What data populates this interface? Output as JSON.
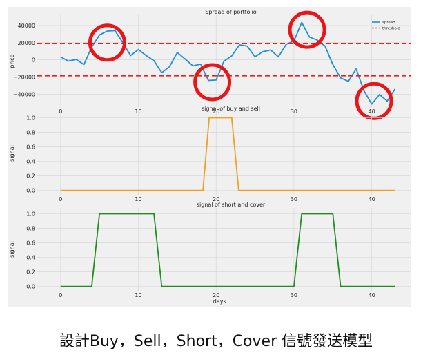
{
  "chart_data": [
    {
      "type": "line",
      "title": "Spread of portfolio",
      "xlabel": "",
      "ylabel": "price",
      "xlim": [
        -3,
        45
      ],
      "ylim": [
        -55000,
        52000
      ],
      "xticks": [
        0,
        10,
        20,
        30,
        40
      ],
      "yticks": [
        40000,
        20000,
        0,
        -20000,
        -40000
      ],
      "ytick_labels": [
        "40000",
        "20000",
        "0",
        "−20000",
        "−40000"
      ],
      "legend": {
        "placement": "top-right",
        "entries": [
          "spread",
          "threshold"
        ]
      },
      "grid": true,
      "series": [
        {
          "name": "spread",
          "color": "#1f8fd6",
          "x": [
            0,
            1,
            2,
            3,
            4,
            5,
            6,
            7,
            8,
            9,
            10,
            11,
            12,
            13,
            14,
            15,
            16,
            17,
            18,
            19,
            20,
            21,
            22,
            23,
            24,
            25,
            26,
            27,
            28,
            29,
            30,
            31,
            32,
            33,
            34,
            35,
            36,
            37,
            38,
            39,
            40,
            41,
            42,
            43
          ],
          "y": [
            3500,
            -1500,
            500,
            -5500,
            15000,
            29000,
            33500,
            34000,
            20000,
            5000,
            12000,
            5000,
            -1000,
            -15000,
            -8000,
            8500,
            1000,
            -7000,
            -5000,
            -24000,
            -23500,
            -1500,
            4500,
            17500,
            16000,
            3500,
            9500,
            11500,
            3500,
            18000,
            22000,
            43500,
            26500,
            23000,
            16000,
            -5500,
            -21000,
            -25000,
            -10500,
            -36000,
            -51500,
            -40500,
            -48000,
            -34000
          ]
        },
        {
          "name": "threshold",
          "color": "#e8221c",
          "style": "dashed",
          "y_upper": 19000,
          "y_lower": -18500
        }
      ],
      "annotations": [
        {
          "shape": "circle",
          "color": "#e8161a",
          "x": 6,
          "y": 20000
        },
        {
          "shape": "circle",
          "color": "#e8161a",
          "x": 19.5,
          "y": -26000
        },
        {
          "shape": "circle",
          "color": "#e8161a",
          "x": 31.7,
          "y": 35000
        },
        {
          "shape": "circle",
          "color": "#e8161a",
          "x": 40.3,
          "y": -48000
        }
      ]
    },
    {
      "type": "line",
      "title": "signal of buy and sell",
      "xlabel": "",
      "ylabel": "signal",
      "xlim": [
        -3,
        45
      ],
      "ylim": [
        -0.06,
        1.08
      ],
      "xticks": [
        0,
        10,
        20,
        30,
        40
      ],
      "yticks": [
        1.0,
        0.8,
        0.6,
        0.4,
        0.2,
        0.0
      ],
      "ytick_labels": [
        "1.0",
        "0.8",
        "0.6",
        "0.4",
        "0.2",
        "0.0"
      ],
      "grid": true,
      "series": [
        {
          "color": "#f0a020",
          "x": [
            0,
            18.3,
            19.1,
            22.0,
            22.9,
            43
          ],
          "y": [
            0,
            0,
            1,
            1,
            0,
            0
          ]
        }
      ]
    },
    {
      "type": "line",
      "title": "signal of short and cover",
      "xlabel": "days",
      "ylabel": "signal",
      "xlim": [
        -3,
        45
      ],
      "ylim": [
        -0.06,
        1.08
      ],
      "xticks": [
        0,
        10,
        20,
        30,
        40
      ],
      "yticks": [
        1.0,
        0.8,
        0.6,
        0.4,
        0.2,
        0.0
      ],
      "ytick_labels": [
        "1.0",
        "0.8",
        "0.6",
        "0.4",
        "0.2",
        "0.0"
      ],
      "grid": true,
      "series": [
        {
          "color": "#228b22",
          "x": [
            0,
            4,
            5,
            12,
            13,
            30,
            31,
            35,
            36,
            43
          ],
          "y": [
            0,
            0,
            1,
            1,
            0,
            0,
            1,
            1,
            0,
            0
          ]
        }
      ]
    }
  ],
  "caption": "設計Buy，Sell，Short，Cover 信號發送模型"
}
